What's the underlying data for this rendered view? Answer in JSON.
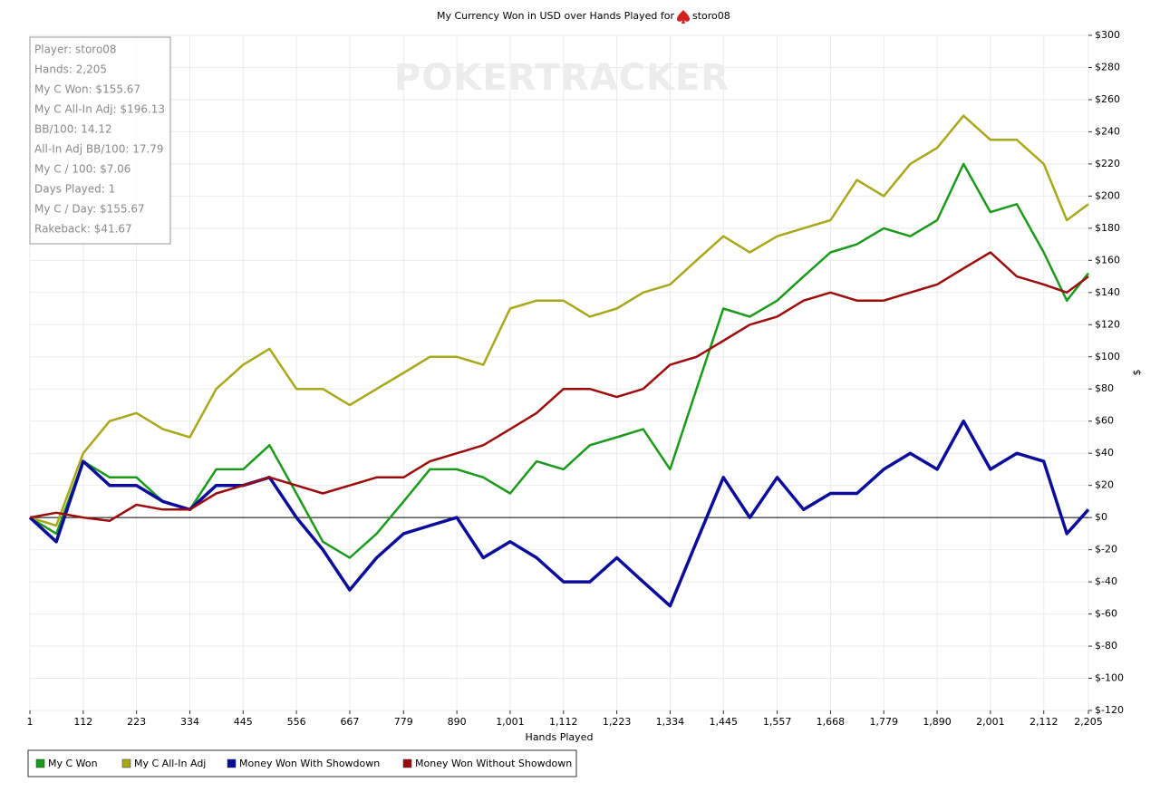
{
  "chart_data": {
    "type": "line",
    "title": "My Currency Won in USD over Hands Played for",
    "player": "storo08",
    "watermark": "POKERTRACKER",
    "xlabel": "Hands Played",
    "ylabel": "$",
    "info": [
      "Player: storo08",
      "Hands: 2,205",
      "My C Won: $155.67",
      "My C All-In Adj: $196.13",
      "BB/100: 14.12",
      "All-In Adj BB/100: 17.79",
      "My C / 100: $7.06",
      "Days Played: 1",
      "My C / Day: $155.67",
      "Rakeback: $41.67"
    ],
    "x": [
      1,
      56,
      112,
      167,
      223,
      278,
      334,
      389,
      445,
      500,
      556,
      611,
      667,
      723,
      779,
      834,
      890,
      945,
      1001,
      1056,
      1112,
      1167,
      1223,
      1278,
      1334,
      1389,
      1445,
      1500,
      1557,
      1612,
      1668,
      1723,
      1779,
      1834,
      1890,
      1945,
      2001,
      2056,
      2112,
      2160,
      2205
    ],
    "series": [
      {
        "name": "My C Won",
        "color": "#1a9a1a",
        "width": 2.5,
        "values": [
          0,
          -10,
          35,
          25,
          25,
          10,
          5,
          30,
          30,
          45,
          15,
          -15,
          -25,
          -10,
          10,
          30,
          30,
          25,
          15,
          35,
          30,
          45,
          50,
          55,
          30,
          80,
          130,
          125,
          135,
          150,
          165,
          170,
          180,
          175,
          185,
          220,
          190,
          195,
          165,
          135,
          152
        ]
      },
      {
        "name": "My C All-In Adj",
        "color": "#a8a81a",
        "width": 2.5,
        "values": [
          0,
          -5,
          40,
          60,
          65,
          55,
          50,
          80,
          95,
          105,
          80,
          80,
          70,
          80,
          90,
          100,
          100,
          95,
          130,
          135,
          135,
          125,
          130,
          140,
          145,
          160,
          175,
          165,
          175,
          180,
          185,
          210,
          200,
          220,
          230,
          250,
          235,
          235,
          220,
          185,
          195
        ]
      },
      {
        "name": "Money Won With Showdown",
        "color": "#0c0c9c",
        "width": 3.5,
        "values": [
          0,
          -15,
          35,
          20,
          20,
          10,
          5,
          20,
          20,
          25,
          0,
          -20,
          -45,
          -25,
          -10,
          -5,
          0,
          -25,
          -15,
          -25,
          -40,
          -40,
          -25,
          -40,
          -55,
          -15,
          25,
          0,
          25,
          5,
          15,
          15,
          30,
          40,
          30,
          60,
          30,
          40,
          35,
          -10,
          5
        ]
      },
      {
        "name": "Money Won Without Showdown",
        "color": "#9c0c0c",
        "width": 2.5,
        "values": [
          0,
          3,
          0,
          -2,
          8,
          5,
          5,
          15,
          20,
          25,
          20,
          15,
          20,
          25,
          25,
          35,
          40,
          45,
          55,
          65,
          80,
          80,
          75,
          80,
          95,
          100,
          110,
          120,
          125,
          135,
          140,
          135,
          135,
          140,
          145,
          155,
          165,
          150,
          145,
          140,
          150
        ]
      }
    ],
    "xlim": [
      1,
      2205
    ],
    "xticks": [
      1,
      112,
      223,
      334,
      445,
      556,
      667,
      779,
      890,
      {
        "value": 1001,
        "label": "1,001"
      },
      {
        "value": 1112,
        "label": "1,112"
      },
      {
        "value": 1223,
        "label": "1,223"
      },
      {
        "value": 1334,
        "label": "1,334"
      },
      {
        "value": 1445,
        "label": "1,445"
      },
      {
        "value": 1557,
        "label": "1,557"
      },
      {
        "value": 1668,
        "label": "1,668"
      },
      {
        "value": 1779,
        "label": "1,779"
      },
      {
        "value": 1890,
        "label": "1,890"
      },
      {
        "value": 2001,
        "label": "2,001"
      },
      {
        "value": 2112,
        "label": "2,112"
      },
      {
        "value": 2205,
        "label": "2,205"
      }
    ],
    "ylim": [
      -120,
      300
    ],
    "yticks": [
      {
        "value": 300,
        "label": "$300"
      },
      {
        "value": 280,
        "label": "$280"
      },
      {
        "value": 260,
        "label": "$260"
      },
      {
        "value": 240,
        "label": "$240"
      },
      {
        "value": 220,
        "label": "$220"
      },
      {
        "value": 200,
        "label": "$200"
      },
      {
        "value": 180,
        "label": "$180"
      },
      {
        "value": 160,
        "label": "$160"
      },
      {
        "value": 140,
        "label": "$140"
      },
      {
        "value": 120,
        "label": "$120"
      },
      {
        "value": 100,
        "label": "$100"
      },
      {
        "value": 80,
        "label": "$80"
      },
      {
        "value": 60,
        "label": "$60"
      },
      {
        "value": 40,
        "label": "$40"
      },
      {
        "value": 20,
        "label": "$20"
      },
      {
        "value": 0,
        "label": "$0"
      },
      {
        "value": -20,
        "label": "$-20"
      },
      {
        "value": -40,
        "label": "$-40"
      },
      {
        "value": -60,
        "label": "$-60"
      },
      {
        "value": -80,
        "label": "$-80"
      },
      {
        "value": -100,
        "label": "$-100"
      },
      {
        "value": -120,
        "label": "$-120"
      }
    ],
    "grid": true,
    "legend": "bottom"
  }
}
